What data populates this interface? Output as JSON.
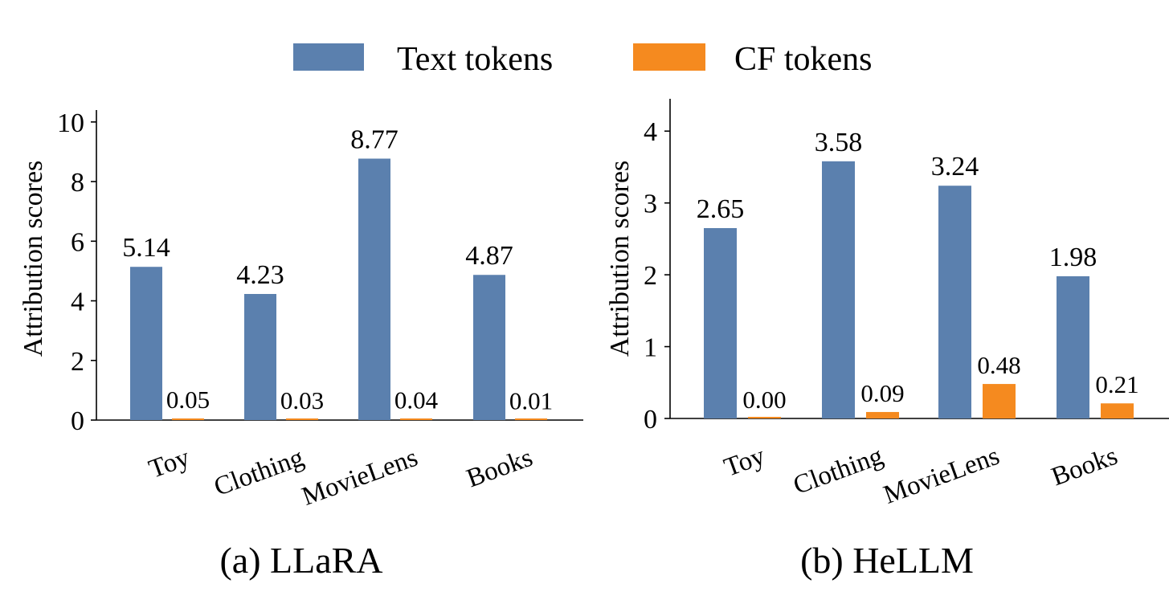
{
  "legend": {
    "placement": "top-center",
    "items": [
      {
        "label": "Text tokens",
        "color": "#5b80ae"
      },
      {
        "label": "CF tokens",
        "color": "#f58a1f"
      }
    ]
  },
  "chart_data": [
    {
      "type": "bar",
      "caption": "(a) LLaRA",
      "ylabel": "Attribution scores",
      "categories": [
        "Toy",
        "Clothing",
        "MovieLens",
        "Books"
      ],
      "ylim": [
        0,
        10.4
      ],
      "yticks": [
        0,
        2,
        4,
        6,
        8,
        10
      ],
      "grid": false,
      "series": [
        {
          "name": "Text tokens",
          "color": "#5b80ae",
          "values": [
            5.14,
            4.23,
            8.77,
            4.87
          ],
          "labels": [
            "5.14",
            "4.23",
            "8.77",
            "4.87"
          ]
        },
        {
          "name": "CF tokens",
          "color": "#f58a1f",
          "values": [
            0.05,
            0.03,
            0.04,
            0.01
          ],
          "labels": [
            "0.05",
            "0.03",
            "0.04",
            "0.01"
          ]
        }
      ]
    },
    {
      "type": "bar",
      "caption": "(b) HeLLM",
      "ylabel": "Attribution scores",
      "categories": [
        "Toy",
        "Clothing",
        "MovieLens",
        "Books"
      ],
      "ylim": [
        0,
        4.45
      ],
      "yticks": [
        0,
        1,
        2,
        3,
        4
      ],
      "grid": false,
      "series": [
        {
          "name": "Text tokens",
          "color": "#5b80ae",
          "values": [
            2.65,
            3.58,
            3.24,
            1.98
          ],
          "labels": [
            "2.65",
            "3.58",
            "3.24",
            "1.98"
          ]
        },
        {
          "name": "CF tokens",
          "color": "#f58a1f",
          "values": [
            0.0,
            0.09,
            0.48,
            0.21
          ],
          "labels": [
            "0.00",
            "0.09",
            "0.48",
            "0.21"
          ]
        }
      ]
    }
  ]
}
